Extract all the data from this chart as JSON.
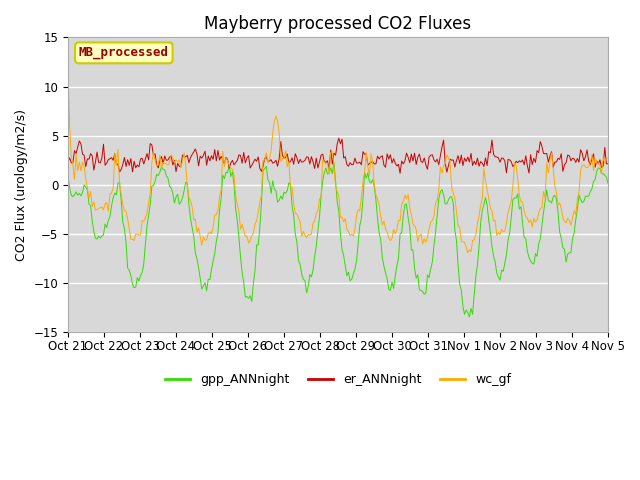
{
  "title": "Mayberry processed CO2 Fluxes",
  "ylabel": "CO2 Flux (urology/m2/s)",
  "ylim": [
    -15,
    15
  ],
  "yticks": [
    -15,
    -10,
    -5,
    0,
    5,
    10,
    15
  ],
  "xtick_labels": [
    "Oct 21",
    "Oct 22",
    "Oct 23",
    "Oct 24",
    "Oct 25",
    "Oct 26",
    "Oct 27",
    "Oct 28",
    "Oct 29",
    "Oct 30",
    "Oct 31",
    "Nov 1",
    "Nov 2",
    "Nov 3",
    "Nov 4",
    "Nov 5"
  ],
  "line_colors": {
    "gpp": "#33dd00",
    "er": "#cc0000",
    "wc": "#ffaa00"
  },
  "legend_labels": [
    "gpp_ANNnight",
    "er_ANNnight",
    "wc_gf"
  ],
  "legend_box_text": "MB_processed",
  "legend_box_text_color": "#990000",
  "legend_box_bg": "#ffffc0",
  "legend_box_edge": "#cccc00",
  "bg_color": "#d8d8d8",
  "fig_bg": "#ffffff",
  "n_points": 336,
  "title_fontsize": 12,
  "axis_label_fontsize": 9,
  "tick_fontsize": 8.5
}
